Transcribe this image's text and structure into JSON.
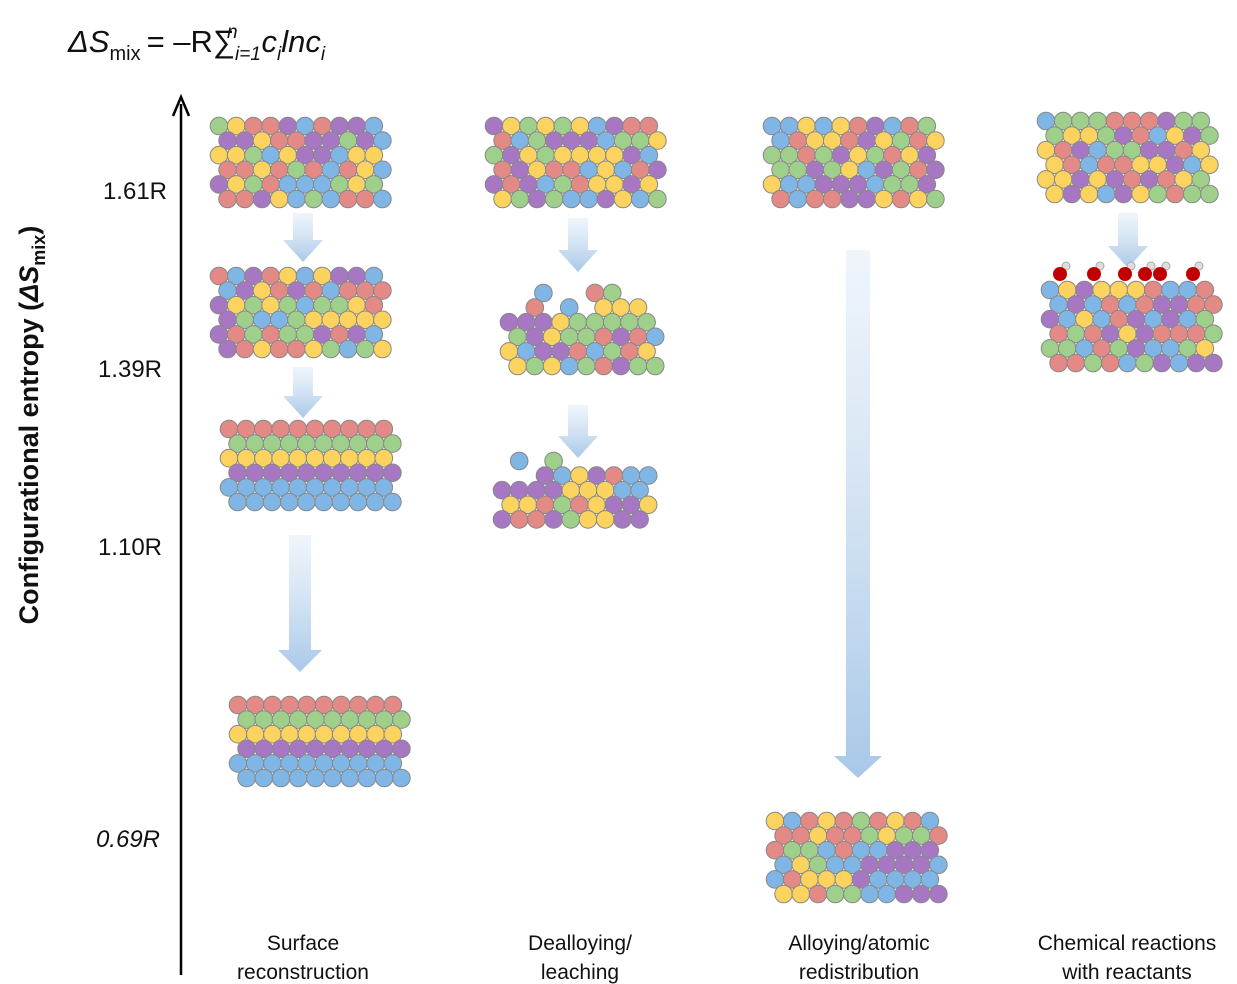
{
  "formula": {
    "delta_s": "ΔS",
    "sub_mix": "mix",
    "rhs": "= –R∑",
    "sub_index": "i=1",
    "sup_n": "n",
    "c1": "c",
    "sub_i1": "i",
    "ln": "lnc",
    "sub_i2": "i"
  },
  "y_axis": {
    "label": "Configurational entropy (",
    "delta_s": "ΔS",
    "sub_mix": "mix",
    "close": ")",
    "levels": [
      "1.61R",
      "1.39R",
      "1.10R",
      "0.69R"
    ]
  },
  "columns": [
    {
      "lines": [
        "Surface",
        "reconstruction"
      ]
    },
    {
      "lines": [
        "Dealloying/",
        "leaching"
      ]
    },
    {
      "lines": [
        "Alloying/atomic",
        "redistribution"
      ]
    },
    {
      "lines": [
        "Chemical reactions",
        "with reactants"
      ]
    }
  ]
}
